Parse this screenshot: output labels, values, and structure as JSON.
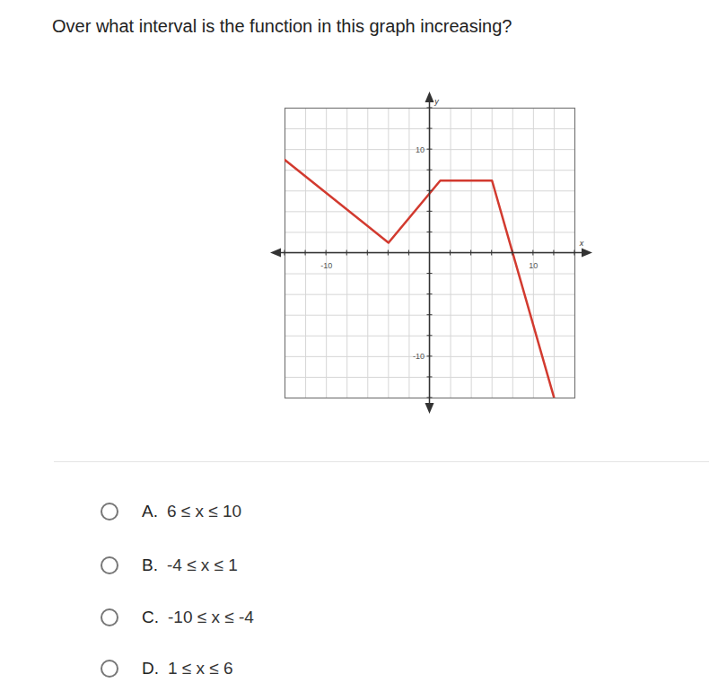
{
  "question": "Over what interval is the function in this graph increasing?",
  "chart_data": {
    "type": "line",
    "xlabel": "x",
    "ylabel": "y",
    "x": [
      -14,
      -4,
      1,
      6,
      12
    ],
    "values": [
      9,
      1,
      7,
      7,
      -14
    ],
    "color": "#d23a2f",
    "xlim": [
      -14,
      14
    ],
    "ylim": [
      -14,
      14
    ],
    "xticks": [
      -10,
      10
    ],
    "yticks": [
      -10,
      10
    ],
    "grid": true,
    "x_grid": [
      -14,
      -12,
      -10,
      -8,
      -6,
      -4,
      -2,
      0,
      2,
      4,
      6,
      8,
      10,
      12,
      14
    ],
    "y_grid": [
      -14,
      -12,
      -10,
      -8,
      -6,
      -4,
      -2,
      0,
      2,
      4,
      6,
      8,
      10,
      12,
      14
    ]
  },
  "options": [
    {
      "letter": "A.",
      "text": "6 ≤ x ≤ 10"
    },
    {
      "letter": "B.",
      "text": "-4 ≤ x ≤ 1"
    },
    {
      "letter": "C.",
      "text": "-10 ≤ x ≤ -4"
    },
    {
      "letter": "D.",
      "text": "1 ≤ x ≤ 6"
    }
  ]
}
